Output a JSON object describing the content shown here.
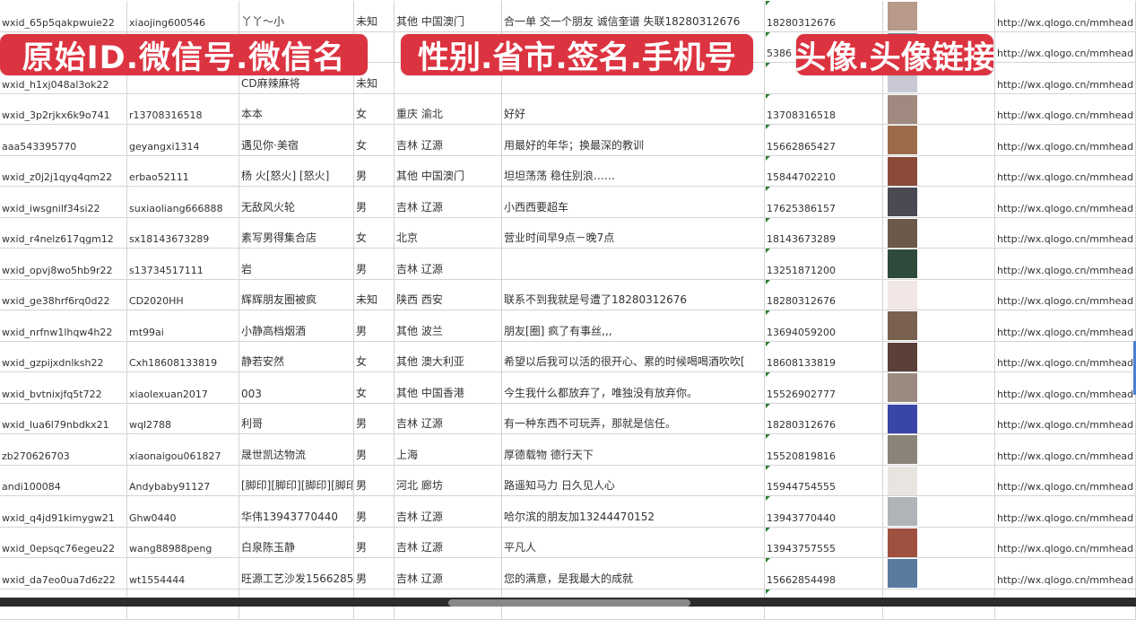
{
  "overlays": {
    "label_1": "原始ID.微信号.微信名",
    "label_2": "性别.省市.签名.手机号",
    "label_3": "头像.头像链接"
  },
  "avatar_colors": [
    "#b89a8a",
    "#7a8fb0",
    "#c9c9d6",
    "#a08a80",
    "#9c6b4a",
    "#8a4b3a",
    "#4a4a55",
    "#6b5a4a",
    "#2d4a3a",
    "#f2e6e6",
    "#7a6050",
    "#5a4038",
    "#9a8a80",
    "#3a45a8",
    "#8a8378",
    "#e8e4e0",
    "#b0b4b8",
    "#a05040",
    "#5a7aa0"
  ],
  "rows": [
    {
      "id": "wxid_65p5qakpwuie22",
      "wechat_no": "xiaojing600546",
      "name": "丫丫～小",
      "gender": "未知",
      "region": "其他 中国澳门",
      "signature": "合一单 交一个朋友 诚信奎谱 失联18280312676",
      "phone": "18280312676",
      "url": "http://wx.qlogo.cn/mmhead"
    },
    {
      "id": "",
      "wechat_no": "",
      "name": "",
      "gender": "",
      "region": "",
      "signature": "",
      "phone": "5386",
      "url": "http://wx.qlogo.cn/mmhead"
    },
    {
      "id": "wxid_h1xj048al3ok22",
      "wechat_no": "",
      "name": "CD麻辣麻将",
      "gender": "未知",
      "region": "",
      "signature": "",
      "phone": "",
      "url": "http://wx.qlogo.cn/mmhead"
    },
    {
      "id": "wxid_3p2rjkx6k9o741",
      "wechat_no": "r13708316518",
      "name": "本本",
      "gender": "女",
      "region": "重庆 渝北",
      "signature": "好好",
      "phone": "13708316518",
      "url": "http://wx.qlogo.cn/mmhead"
    },
    {
      "id": "aaa543395770",
      "wechat_no": "geyangxi1314",
      "name": "遇见你·美宿",
      "gender": "女",
      "region": "吉林 辽源",
      "signature": "用最好的年华；换最深的教训",
      "phone": "15662865427",
      "url": "http://wx.qlogo.cn/mmhead"
    },
    {
      "id": "wxid_z0j2j1qyq4qm22",
      "wechat_no": "erbao52111",
      "name": "杨 火[怒火] [怒火]",
      "gender": "男",
      "region": "其他 中国澳门",
      "signature": "坦坦荡荡 稳住别浪……",
      "phone": "15844702210",
      "url": "http://wx.qlogo.cn/mmhead"
    },
    {
      "id": "wxid_iwsgnilf34si22",
      "wechat_no": "suxiaoliang666888",
      "name": "无敌风火轮",
      "gender": "男",
      "region": "吉林 辽源",
      "signature": "小西西要超车",
      "phone": "17625386157",
      "url": "http://wx.qlogo.cn/mmhead"
    },
    {
      "id": "wxid_r4nelz617qgm12",
      "wechat_no": "sx18143673289",
      "name": "素写男得集合店",
      "gender": "女",
      "region": "北京",
      "signature": "营业时间早9点－晚7点",
      "phone": "18143673289",
      "url": "http://wx.qlogo.cn/mmhead"
    },
    {
      "id": "wxid_opvj8wo5hb9r22",
      "wechat_no": "s13734517111",
      "name": "岩",
      "gender": "男",
      "region": "吉林 辽源",
      "signature": "",
      "phone": "13251871200",
      "url": "http://wx.qlogo.cn/mmhead"
    },
    {
      "id": "wxid_ge38hrf6rq0d22",
      "wechat_no": "CD2020HH",
      "name": "辉辉朋友圈被疯",
      "gender": "未知",
      "region": "陕西 西安",
      "signature": "联系不到我就是号遭了18280312676",
      "phone": "18280312676",
      "url": "http://wx.qlogo.cn/mmhead"
    },
    {
      "id": "wxid_nrfnw1lhqw4h22",
      "wechat_no": "mt99ai",
      "name": "小静高档烟酒",
      "gender": "男",
      "region": "其他 波兰",
      "signature": "朋友[圈] 疯了有事丝,,,",
      "phone": "13694059200",
      "url": "http://wx.qlogo.cn/mmhead"
    },
    {
      "id": "wxid_gzpijxdnlksh22",
      "wechat_no": "Cxh18608133819",
      "name": "静若安然",
      "gender": "女",
      "region": "其他 澳大利亚",
      "signature": "希望以后我可以活的很开心、累的时候喝喝酒吹吹[",
      "phone": "18608133819",
      "url": "http://wx.qlogo.cn/mmhead"
    },
    {
      "id": "wxid_bvtnixjfq5t722",
      "wechat_no": "xiaolexuan2017",
      "name": "003",
      "gender": "女",
      "region": "其他 中国香港",
      "signature": "今生我什么都放弃了，唯独没有放弃你。",
      "phone": "15526902777",
      "url": "http://wx.qlogo.cn/mmhead"
    },
    {
      "id": "wxid_lua6l79nbdkx21",
      "wechat_no": "wql2788",
      "name": "利哥",
      "gender": "男",
      "region": "吉林 辽源",
      "signature": "有一种东西不可玩弄，那就是信任。",
      "phone": "18280312676",
      "url": "http://wx.qlogo.cn/mmhead"
    },
    {
      "id": "zb270626703",
      "wechat_no": "xiaonaigou061827",
      "name": "晟世凯达物流",
      "gender": "男",
      "region": "上海",
      "signature": "厚德载物 德行天下",
      "phone": "15520819816",
      "url": "http://wx.qlogo.cn/mmhead"
    },
    {
      "id": "andi100084",
      "wechat_no": "Andybaby91127",
      "name": "[脚印][脚印][脚印][脚印",
      "gender": "男",
      "region": "河北 廊坊",
      "signature": "路遥知马力 日久见人心",
      "phone": "15944754555",
      "url": "http://wx.qlogo.cn/mmhead"
    },
    {
      "id": "wxid_q4jd91kimygw21",
      "wechat_no": "Ghw0440",
      "name": "华伟13943770440",
      "gender": "男",
      "region": "吉林 辽源",
      "signature": "哈尔滨的朋友加13244470152",
      "phone": "13943770440",
      "url": "http://wx.qlogo.cn/mmhead"
    },
    {
      "id": "wxid_0epsqc76egeu22",
      "wechat_no": "wang88988peng",
      "name": "白泉陈玉静",
      "gender": "男",
      "region": "吉林 辽源",
      "signature": "平凡人",
      "phone": "13943757555",
      "url": "http://wx.qlogo.cn/mmhead"
    },
    {
      "id": "wxid_da7eo0ua7d6z22",
      "wechat_no": "wt1554444",
      "name": "旺源工艺沙发15662854",
      "gender": "男",
      "region": "吉林 辽源",
      "signature": "您的满意，是我最大的成就",
      "phone": "15662854498",
      "url": "http://wx.qlogo.cn/mmhead"
    },
    {
      "id": "",
      "wechat_no": "",
      "name": "",
      "gender": "",
      "region": "",
      "signature": "",
      "phone": "",
      "url": ""
    }
  ]
}
